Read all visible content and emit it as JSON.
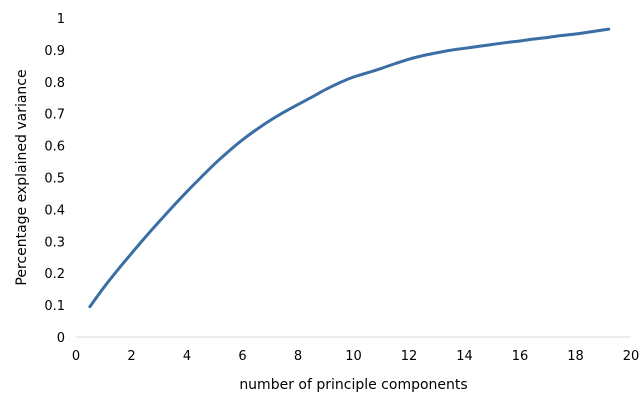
{
  "chart_data": {
    "type": "line",
    "title": "",
    "xlabel": "number of principle components",
    "ylabel": "Percentage explained variance",
    "xlim": [
      0,
      20
    ],
    "ylim": [
      0,
      1
    ],
    "xticks": [
      "0",
      "2",
      "4",
      "6",
      "8",
      "10",
      "12",
      "14",
      "16",
      "18",
      "20"
    ],
    "yticks": [
      "0",
      "0.1",
      "0.2",
      "0.3",
      "0.4",
      "0.5",
      "0.6",
      "0.7",
      "0.8",
      "0.9",
      "1"
    ],
    "grid": false,
    "legend": false,
    "series": [
      {
        "color": "#3a6ea5",
        "x": [
          0.5,
          1,
          1.5,
          2,
          2.5,
          3,
          3.5,
          4,
          4.5,
          5,
          5.5,
          6,
          6.5,
          7,
          7.5,
          8,
          8.5,
          9,
          9.5,
          10,
          10.5,
          11,
          11.5,
          12,
          12.5,
          13,
          13.5,
          14,
          14.5,
          15,
          15.5,
          16,
          16.5,
          17,
          17.5,
          18,
          18.5,
          19.2
        ],
        "y": [
          0.095,
          0.155,
          0.21,
          0.262,
          0.313,
          0.362,
          0.41,
          0.456,
          0.5,
          0.543,
          0.582,
          0.618,
          0.65,
          0.679,
          0.705,
          0.729,
          0.752,
          0.776,
          0.797,
          0.815,
          0.828,
          0.842,
          0.857,
          0.871,
          0.882,
          0.891,
          0.899,
          0.905,
          0.911,
          0.917,
          0.923,
          0.928,
          0.934,
          0.939,
          0.945,
          0.95,
          0.956,
          0.965
        ]
      }
    ]
  }
}
